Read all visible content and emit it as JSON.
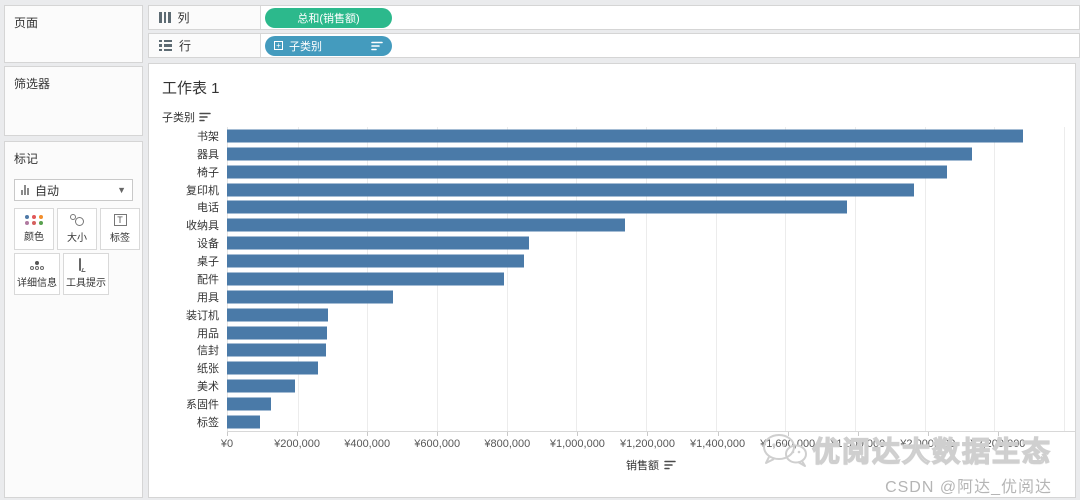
{
  "panels": {
    "pages_label": "页面",
    "filters_label": "筛选器",
    "marks_label": "标记"
  },
  "marks": {
    "type_selector": "自动",
    "buttons": [
      {
        "label": "颜色"
      },
      {
        "label": "大小"
      },
      {
        "label": "标签"
      },
      {
        "label": "详细信息"
      },
      {
        "label": "工具提示"
      }
    ],
    "palette_dots": [
      "#4e79a7",
      "#e15759",
      "#f28e2b",
      "#b07aa1",
      "#d5605e",
      "#59a14f"
    ]
  },
  "shelves": {
    "columns_label": "列",
    "rows_label": "行",
    "columns_pill": "总和(销售额)",
    "rows_pill": "子类别"
  },
  "colors": {
    "bar": "#4a7aa8",
    "measure_pill": "#2cb98c",
    "dimension_pill": "#449bbe"
  },
  "sheet": {
    "title": "工作表 1",
    "row_header": "子类别",
    "axis_title": "销售额"
  },
  "chart_data": {
    "type": "bar",
    "orientation": "horizontal",
    "title": "工作表 1",
    "xlabel": "销售额",
    "ylabel": "子类别",
    "currency": "¥",
    "xlim": [
      0,
      2420000
    ],
    "tick_step": 200000,
    "tick_label_max": 2200000,
    "grid": true,
    "categories": [
      "书架",
      "器具",
      "椅子",
      "复印机",
      "电话",
      "收纳具",
      "设备",
      "桌子",
      "配件",
      "用具",
      "装订机",
      "用品",
      "信封",
      "纸张",
      "美术",
      "系固件",
      "标签"
    ],
    "values": [
      2283000,
      2136000,
      2064000,
      1971000,
      1779000,
      1142000,
      867000,
      852000,
      795000,
      476000,
      289000,
      287000,
      284000,
      260000,
      195000,
      127000,
      96000
    ]
  },
  "watermark": {
    "brand": "优阅达大数据生态",
    "credit": "CSDN @阿达_优阅达"
  }
}
